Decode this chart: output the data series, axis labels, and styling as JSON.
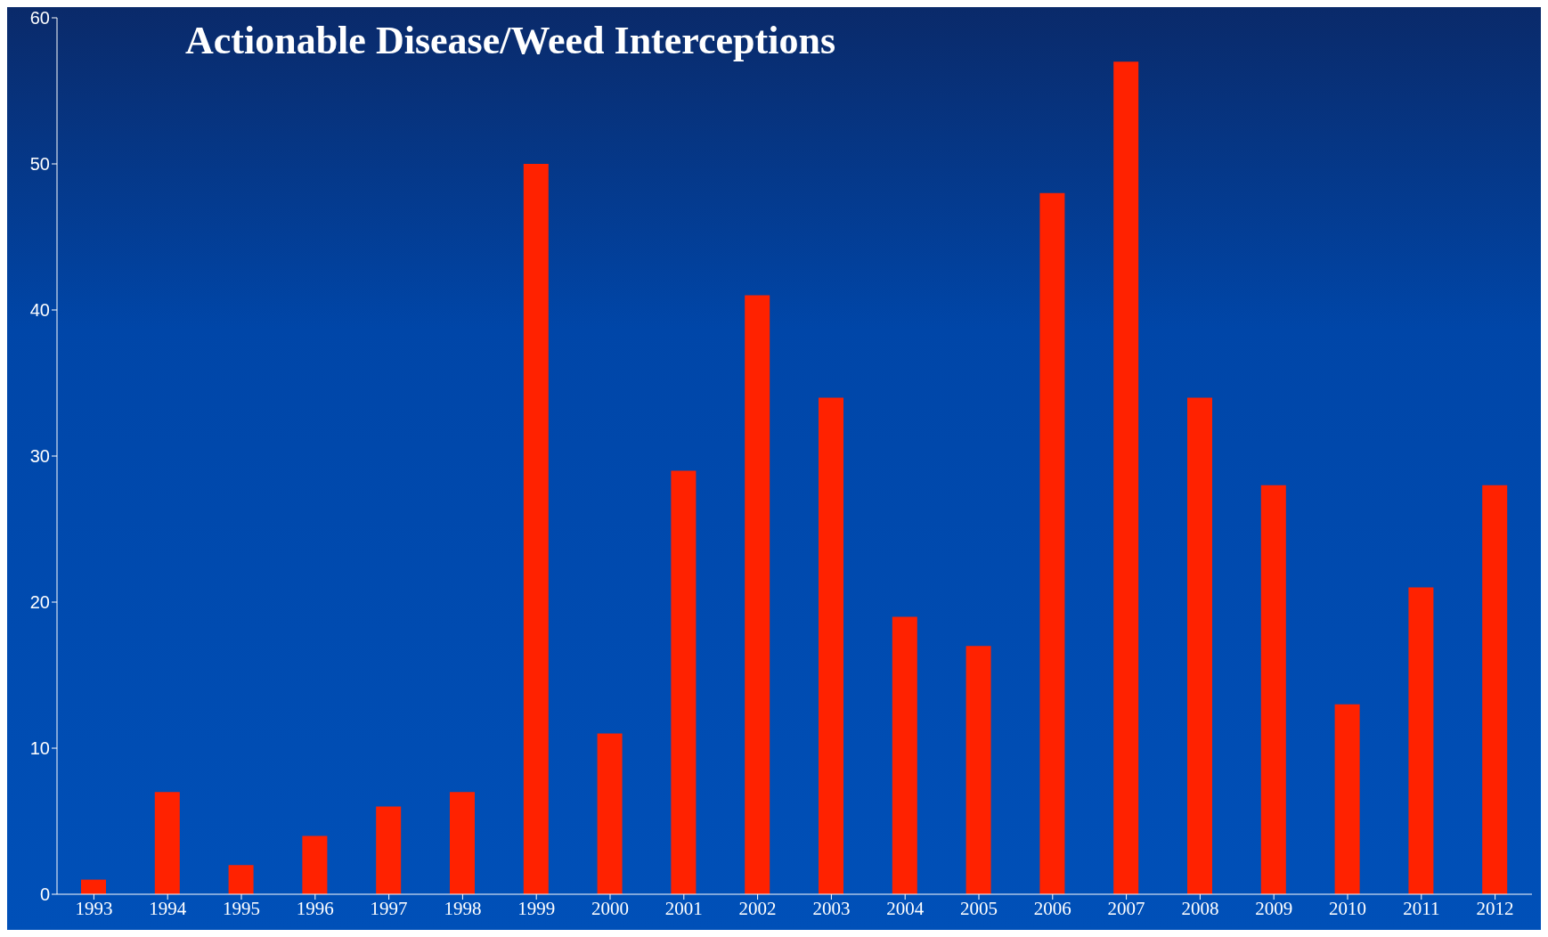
{
  "chart_data": {
    "type": "bar",
    "title": "Actionable Disease/Weed Interceptions",
    "categories": [
      "1993",
      "1994",
      "1995",
      "1996",
      "1997",
      "1998",
      "1999",
      "2000",
      "2001",
      "2002",
      "2003",
      "2004",
      "2005",
      "2006",
      "2007",
      "2008",
      "2009",
      "2010",
      "2011",
      "2012"
    ],
    "values": [
      1,
      7,
      2,
      4,
      6,
      7,
      50,
      11,
      29,
      41,
      34,
      19,
      17,
      48,
      57,
      34,
      28,
      13,
      21,
      28
    ],
    "color": "#ff2200",
    "ylim": [
      0,
      60
    ],
    "yticks": [
      0,
      10,
      20,
      30,
      40,
      50,
      60
    ],
    "grid": false,
    "legend": false
  }
}
